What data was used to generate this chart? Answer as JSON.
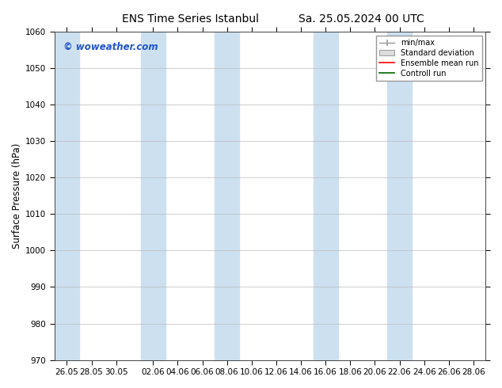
{
  "title": "ENS Time Series Istanbul",
  "title2": "Sa. 25.05.2024 00 UTC",
  "ylabel": "Surface Pressure (hPa)",
  "ylim": [
    970,
    1060
  ],
  "yticks": [
    970,
    980,
    990,
    1000,
    1010,
    1020,
    1030,
    1040,
    1050,
    1060
  ],
  "xtick_dates": [
    "2024-05-26",
    "2024-05-28",
    "2024-05-30",
    "2024-06-02",
    "2024-06-04",
    "2024-06-06",
    "2024-06-08",
    "2024-06-10",
    "2024-06-12",
    "2024-06-14",
    "2024-06-16",
    "2024-06-18",
    "2024-06-20",
    "2024-06-22",
    "2024-06-24",
    "2024-06-26",
    "2024-06-28"
  ],
  "xtick_labels": [
    "26.05",
    "28.05",
    "30.05",
    "02.06",
    "04.06",
    "06.06",
    "08.06",
    "10.06",
    "12.06",
    "14.06",
    "16.06",
    "18.06",
    "20.06",
    "22.06",
    "24.06",
    "26.06",
    "28.06"
  ],
  "x_start": "2024-05-25",
  "x_end": "2024-06-29",
  "watermark": "© woweather.com",
  "watermark_color": "#2255cc",
  "background_color": "#ffffff",
  "plot_bg_color": "#ffffff",
  "shaded_band_color": "#cce0f0",
  "shaded_band_alpha": 1.0,
  "shaded_bands": [
    [
      "2024-05-25",
      "2024-05-27"
    ],
    [
      "2024-06-01",
      "2024-06-03"
    ],
    [
      "2024-06-07",
      "2024-06-09"
    ],
    [
      "2024-06-15",
      "2024-06-17"
    ],
    [
      "2024-06-21",
      "2024-06-23"
    ]
  ],
  "title_fontsize": 10,
  "tick_fontsize": 7.5,
  "ylabel_fontsize": 8.5
}
